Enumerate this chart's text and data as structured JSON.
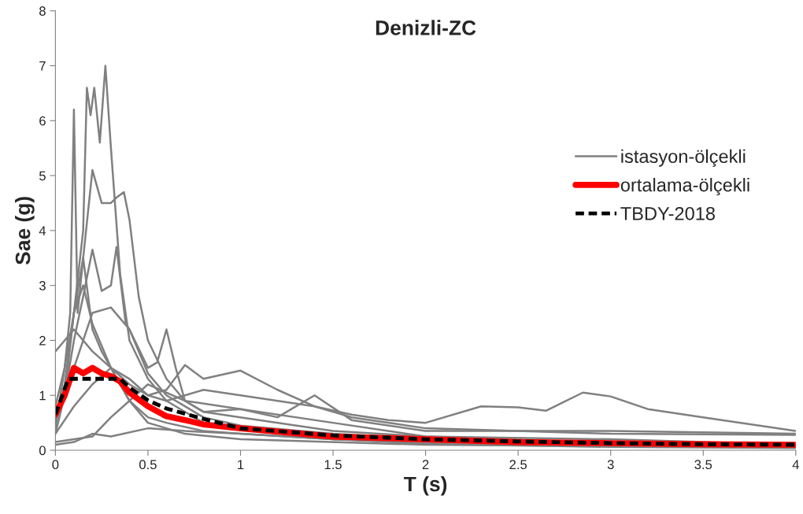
{
  "chart_data": {
    "type": "line",
    "title": "Denizli-ZC",
    "xlabel": "T (s)",
    "ylabel": "Sae (g)",
    "xlim": [
      0,
      4
    ],
    "xticks": [
      0,
      0.5,
      1,
      1.5,
      2,
      2.5,
      3,
      3.5,
      4
    ],
    "ylim": [
      0,
      8
    ],
    "yticks": [
      0,
      1,
      2,
      3,
      4,
      5,
      6,
      7,
      8
    ],
    "grid": false,
    "legend": "right",
    "marker": "none",
    "series": [
      {
        "name": "istasyon-ölçekli",
        "color": "#808080",
        "x": [
          0,
          0.05,
          0.1,
          0.15,
          0.17,
          0.19,
          0.21,
          0.24,
          0.27,
          0.3,
          0.35,
          0.4,
          0.5,
          0.6,
          0.8,
          1,
          1.5,
          2,
          3,
          4
        ],
        "values": [
          0.6,
          1.2,
          2.5,
          4,
          6.6,
          6.1,
          6.6,
          5.6,
          7.0,
          5.5,
          3.2,
          2.0,
          1.3,
          0.9,
          0.5,
          0.4,
          0.2,
          0.15,
          0.1,
          0.08
        ]
      },
      {
        "color": "#808080",
        "x": [
          0,
          0.05,
          0.08,
          0.1,
          0.12,
          0.15,
          0.2,
          0.25,
          0.3,
          0.4,
          0.5,
          0.6,
          0.8,
          1,
          1.5,
          2,
          3,
          4
        ],
        "values": [
          0.4,
          1.5,
          2.5,
          6.2,
          2.5,
          3.5,
          2.2,
          1.8,
          1.5,
          0.9,
          0.6,
          0.5,
          0.35,
          0.3,
          0.2,
          0.15,
          0.1,
          0.08
        ]
      },
      {
        "color": "#808080",
        "x": [
          0,
          0.05,
          0.1,
          0.15,
          0.2,
          0.25,
          0.3,
          0.33,
          0.37,
          0.4,
          0.45,
          0.5,
          0.6,
          0.7,
          0.8,
          1,
          1.5,
          2,
          3,
          4
        ],
        "values": [
          0.8,
          1.5,
          2.5,
          3.5,
          5.1,
          4.5,
          4.5,
          4.6,
          4.7,
          4.2,
          2.8,
          2.0,
          1.3,
          0.9,
          0.7,
          0.6,
          0.35,
          0.25,
          0.2,
          0.1
        ]
      },
      {
        "color": "#808080",
        "x": [
          0,
          0.05,
          0.1,
          0.15,
          0.2,
          0.25,
          0.3,
          0.33,
          0.38,
          0.4,
          0.5,
          0.6,
          0.7,
          0.8,
          1,
          1.5,
          2,
          3,
          4
        ],
        "values": [
          0.5,
          1,
          2,
          2.8,
          3.65,
          2.9,
          3.0,
          3.7,
          2.3,
          2.2,
          1.4,
          1.0,
          0.8,
          0.6,
          0.45,
          0.3,
          0.2,
          0.12,
          0.08
        ]
      },
      {
        "color": "#808080",
        "x": [
          0,
          0.1,
          0.2,
          0.3,
          0.4,
          0.5,
          0.6,
          0.7,
          0.8,
          1.0,
          1.2,
          1.4,
          1.6,
          1.8,
          2.0,
          2.3,
          2.5,
          2.65,
          2.85,
          3.0,
          3.2,
          3.5,
          4.0
        ],
        "values": [
          1.8,
          2.2,
          1.8,
          1.5,
          1.3,
          1.0,
          0.9,
          1.0,
          1.1,
          1.0,
          0.9,
          0.8,
          0.65,
          0.55,
          0.5,
          0.8,
          0.78,
          0.72,
          1.05,
          0.98,
          0.75,
          0.6,
          0.35
        ]
      },
      {
        "color": "#808080",
        "x": [
          0,
          0.1,
          0.2,
          0.3,
          0.4,
          0.5,
          0.6,
          0.7,
          0.8,
          1.0,
          1.2,
          1.4,
          1.6,
          2,
          3,
          4
        ],
        "values": [
          0.3,
          0.8,
          1.2,
          1.5,
          1.2,
          1.0,
          1.1,
          1.55,
          1.3,
          1.45,
          1.1,
          0.8,
          0.6,
          0.4,
          0.3,
          0.28
        ]
      },
      {
        "color": "#808080",
        "x": [
          0,
          0.1,
          0.2,
          0.3,
          0.4,
          0.5,
          0.55,
          0.6,
          0.65,
          0.7,
          0.8,
          1,
          1.2,
          1.4,
          1.6,
          2,
          3,
          4
        ],
        "values": [
          0.5,
          1.5,
          2.5,
          2.6,
          2.2,
          1.5,
          1.6,
          2.2,
          1.5,
          0.9,
          0.7,
          0.75,
          0.6,
          1.0,
          0.55,
          0.35,
          0.35,
          0.3
        ]
      },
      {
        "color": "#808080",
        "x": [
          0,
          0.1,
          0.2,
          0.3,
          0.5,
          0.7,
          1,
          1.5,
          2,
          3,
          4
        ],
        "values": [
          0.1,
          0.15,
          0.3,
          0.25,
          0.4,
          0.35,
          0.3,
          0.2,
          0.12,
          0.06,
          0.04
        ]
      },
      {
        "color": "#808080",
        "x": [
          0,
          0.05,
          0.1,
          0.15,
          0.2,
          0.3,
          0.4,
          0.5,
          0.7,
          1,
          2,
          4
        ],
        "values": [
          0.3,
          1.0,
          2.5,
          3.0,
          2.3,
          1.5,
          0.9,
          0.5,
          0.3,
          0.2,
          0.1,
          0.05
        ]
      },
      {
        "color": "#808080",
        "x": [
          0,
          0.1,
          0.2,
          0.3,
          0.4,
          0.5,
          0.7,
          1,
          1.5,
          2,
          3,
          4
        ],
        "values": [
          0.15,
          0.2,
          0.25,
          0.6,
          0.9,
          1.2,
          0.9,
          0.75,
          0.5,
          0.25,
          0.13,
          0.09
        ]
      },
      {
        "name": "ortalama-ölçekli",
        "color": "#ff0000",
        "x": [
          0,
          0.05,
          0.1,
          0.15,
          0.2,
          0.25,
          0.3,
          0.35,
          0.4,
          0.5,
          0.6,
          0.7,
          0.8,
          1.0,
          1.5,
          2,
          2.5,
          3,
          3.5,
          4
        ],
        "values": [
          0.65,
          1.0,
          1.5,
          1.4,
          1.5,
          1.4,
          1.35,
          1.25,
          1.05,
          0.8,
          0.62,
          0.55,
          0.47,
          0.4,
          0.25,
          0.2,
          0.15,
          0.13,
          0.11,
          0.1
        ]
      },
      {
        "name": "TBDY-2018",
        "color": "#000000",
        "line_style": "dashed",
        "x": [
          0,
          0.07,
          0.35,
          0.4,
          0.5,
          0.6,
          0.8,
          1,
          1.5,
          2,
          2.5,
          3,
          3.5,
          4
        ],
        "values": [
          0.65,
          1.3,
          1.3,
          1.14,
          0.91,
          0.76,
          0.57,
          0.4,
          0.27,
          0.2,
          0.16,
          0.13,
          0.11,
          0.1
        ]
      }
    ]
  }
}
